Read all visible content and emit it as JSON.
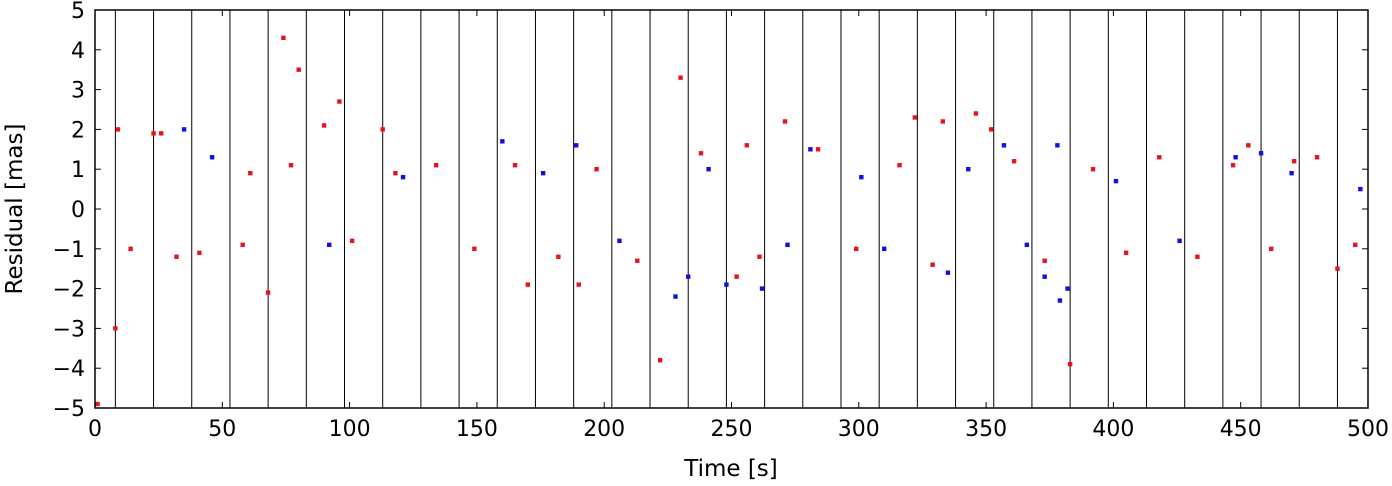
{
  "chart_data": {
    "type": "scatter",
    "title": "",
    "xlabel": "Time [s]",
    "ylabel": "Residual [mas]",
    "xlim": [
      0,
      500
    ],
    "ylim": [
      -5,
      5
    ],
    "x_ticks": [
      0,
      50,
      100,
      150,
      200,
      250,
      300,
      350,
      400,
      450,
      500
    ],
    "y_ticks": [
      -5,
      -4,
      -3,
      -2,
      -1,
      0,
      1,
      2,
      3,
      4,
      5
    ],
    "x_tick_labels": [
      "0",
      "50",
      "100",
      "150",
      "200",
      "250",
      "300",
      "350",
      "400",
      "450",
      "500"
    ],
    "y_tick_labels": [
      "−5",
      "−4",
      "−3",
      "−2",
      "−1",
      "0",
      "1",
      "2",
      "3",
      "4",
      "5"
    ],
    "vertical_lines": [
      8,
      23,
      38,
      53,
      68,
      83,
      98,
      113,
      128,
      143,
      158,
      173,
      188,
      203,
      218,
      233,
      248,
      263,
      278,
      293,
      308,
      323,
      338,
      353,
      368,
      383,
      398,
      413,
      428,
      443,
      458,
      473,
      488
    ],
    "grid": false,
    "legend": "none",
    "colors": {
      "red": "#e8141a",
      "blue": "#1010e0"
    },
    "series": [
      {
        "color": "#e8141a",
        "points": [
          [
            1,
            -4.9
          ],
          [
            8,
            -3.0
          ],
          [
            68,
            -2.1
          ],
          [
            74,
            4.3
          ],
          [
            80,
            3.5
          ],
          [
            96,
            2.7
          ],
          [
            90,
            2.1
          ],
          [
            113,
            2.0
          ],
          [
            9,
            2.0
          ],
          [
            23,
            1.9
          ],
          [
            26,
            1.9
          ],
          [
            222,
            -3.8
          ],
          [
            230,
            3.3
          ],
          [
            271,
            2.2
          ],
          [
            256,
            1.6
          ],
          [
            322,
            2.3
          ],
          [
            333,
            2.2
          ],
          [
            346,
            2.4
          ],
          [
            352,
            2.0
          ],
          [
            383,
            -3.9
          ],
          [
            170,
            -1.9
          ],
          [
            190,
            -1.9
          ],
          [
            252,
            -1.7
          ],
          [
            480,
            1.3
          ],
          [
            453,
            1.6
          ],
          [
            488,
            -1.5
          ],
          [
            14,
            -1.0
          ],
          [
            32,
            -1.2
          ],
          [
            41,
            -1.1
          ],
          [
            58,
            -0.9
          ],
          [
            61,
            0.9
          ],
          [
            77,
            1.1
          ],
          [
            101,
            -0.8
          ],
          [
            118,
            0.9
          ],
          [
            134,
            1.1
          ],
          [
            149,
            -1.0
          ],
          [
            165,
            1.1
          ],
          [
            182,
            -1.2
          ],
          [
            197,
            1.0
          ],
          [
            213,
            -1.3
          ],
          [
            238,
            1.4
          ],
          [
            261,
            -1.2
          ],
          [
            284,
            1.5
          ],
          [
            299,
            -1.0
          ],
          [
            316,
            1.1
          ],
          [
            329,
            -1.4
          ],
          [
            361,
            1.2
          ],
          [
            373,
            -1.3
          ],
          [
            392,
            1.0
          ],
          [
            405,
            -1.1
          ],
          [
            418,
            1.3
          ],
          [
            433,
            -1.2
          ],
          [
            447,
            1.1
          ],
          [
            462,
            -1.0
          ],
          [
            471,
            1.2
          ],
          [
            495,
            -0.9
          ]
        ]
      },
      {
        "color": "#1010e0",
        "points": [
          [
            35,
            2.0
          ],
          [
            160,
            1.7
          ],
          [
            189,
            1.6
          ],
          [
            228,
            -2.2
          ],
          [
            233,
            -1.7
          ],
          [
            248,
            -1.9
          ],
          [
            262,
            -2.0
          ],
          [
            310,
            -1.0
          ],
          [
            335,
            -1.6
          ],
          [
            357,
            1.6
          ],
          [
            373,
            -1.7
          ],
          [
            379,
            -2.3
          ],
          [
            382,
            -2.0
          ],
          [
            378,
            1.6
          ],
          [
            458,
            1.4
          ],
          [
            448,
            1.3
          ],
          [
            281,
            1.5
          ],
          [
            46,
            1.3
          ],
          [
            92,
            -0.9
          ],
          [
            121,
            0.8
          ],
          [
            176,
            0.9
          ],
          [
            206,
            -0.8
          ],
          [
            241,
            1.0
          ],
          [
            272,
            -0.9
          ],
          [
            301,
            0.8
          ],
          [
            343,
            1.0
          ],
          [
            366,
            -0.9
          ],
          [
            401,
            0.7
          ],
          [
            426,
            -0.8
          ],
          [
            470,
            0.9
          ],
          [
            497,
            0.5
          ]
        ]
      }
    ]
  }
}
